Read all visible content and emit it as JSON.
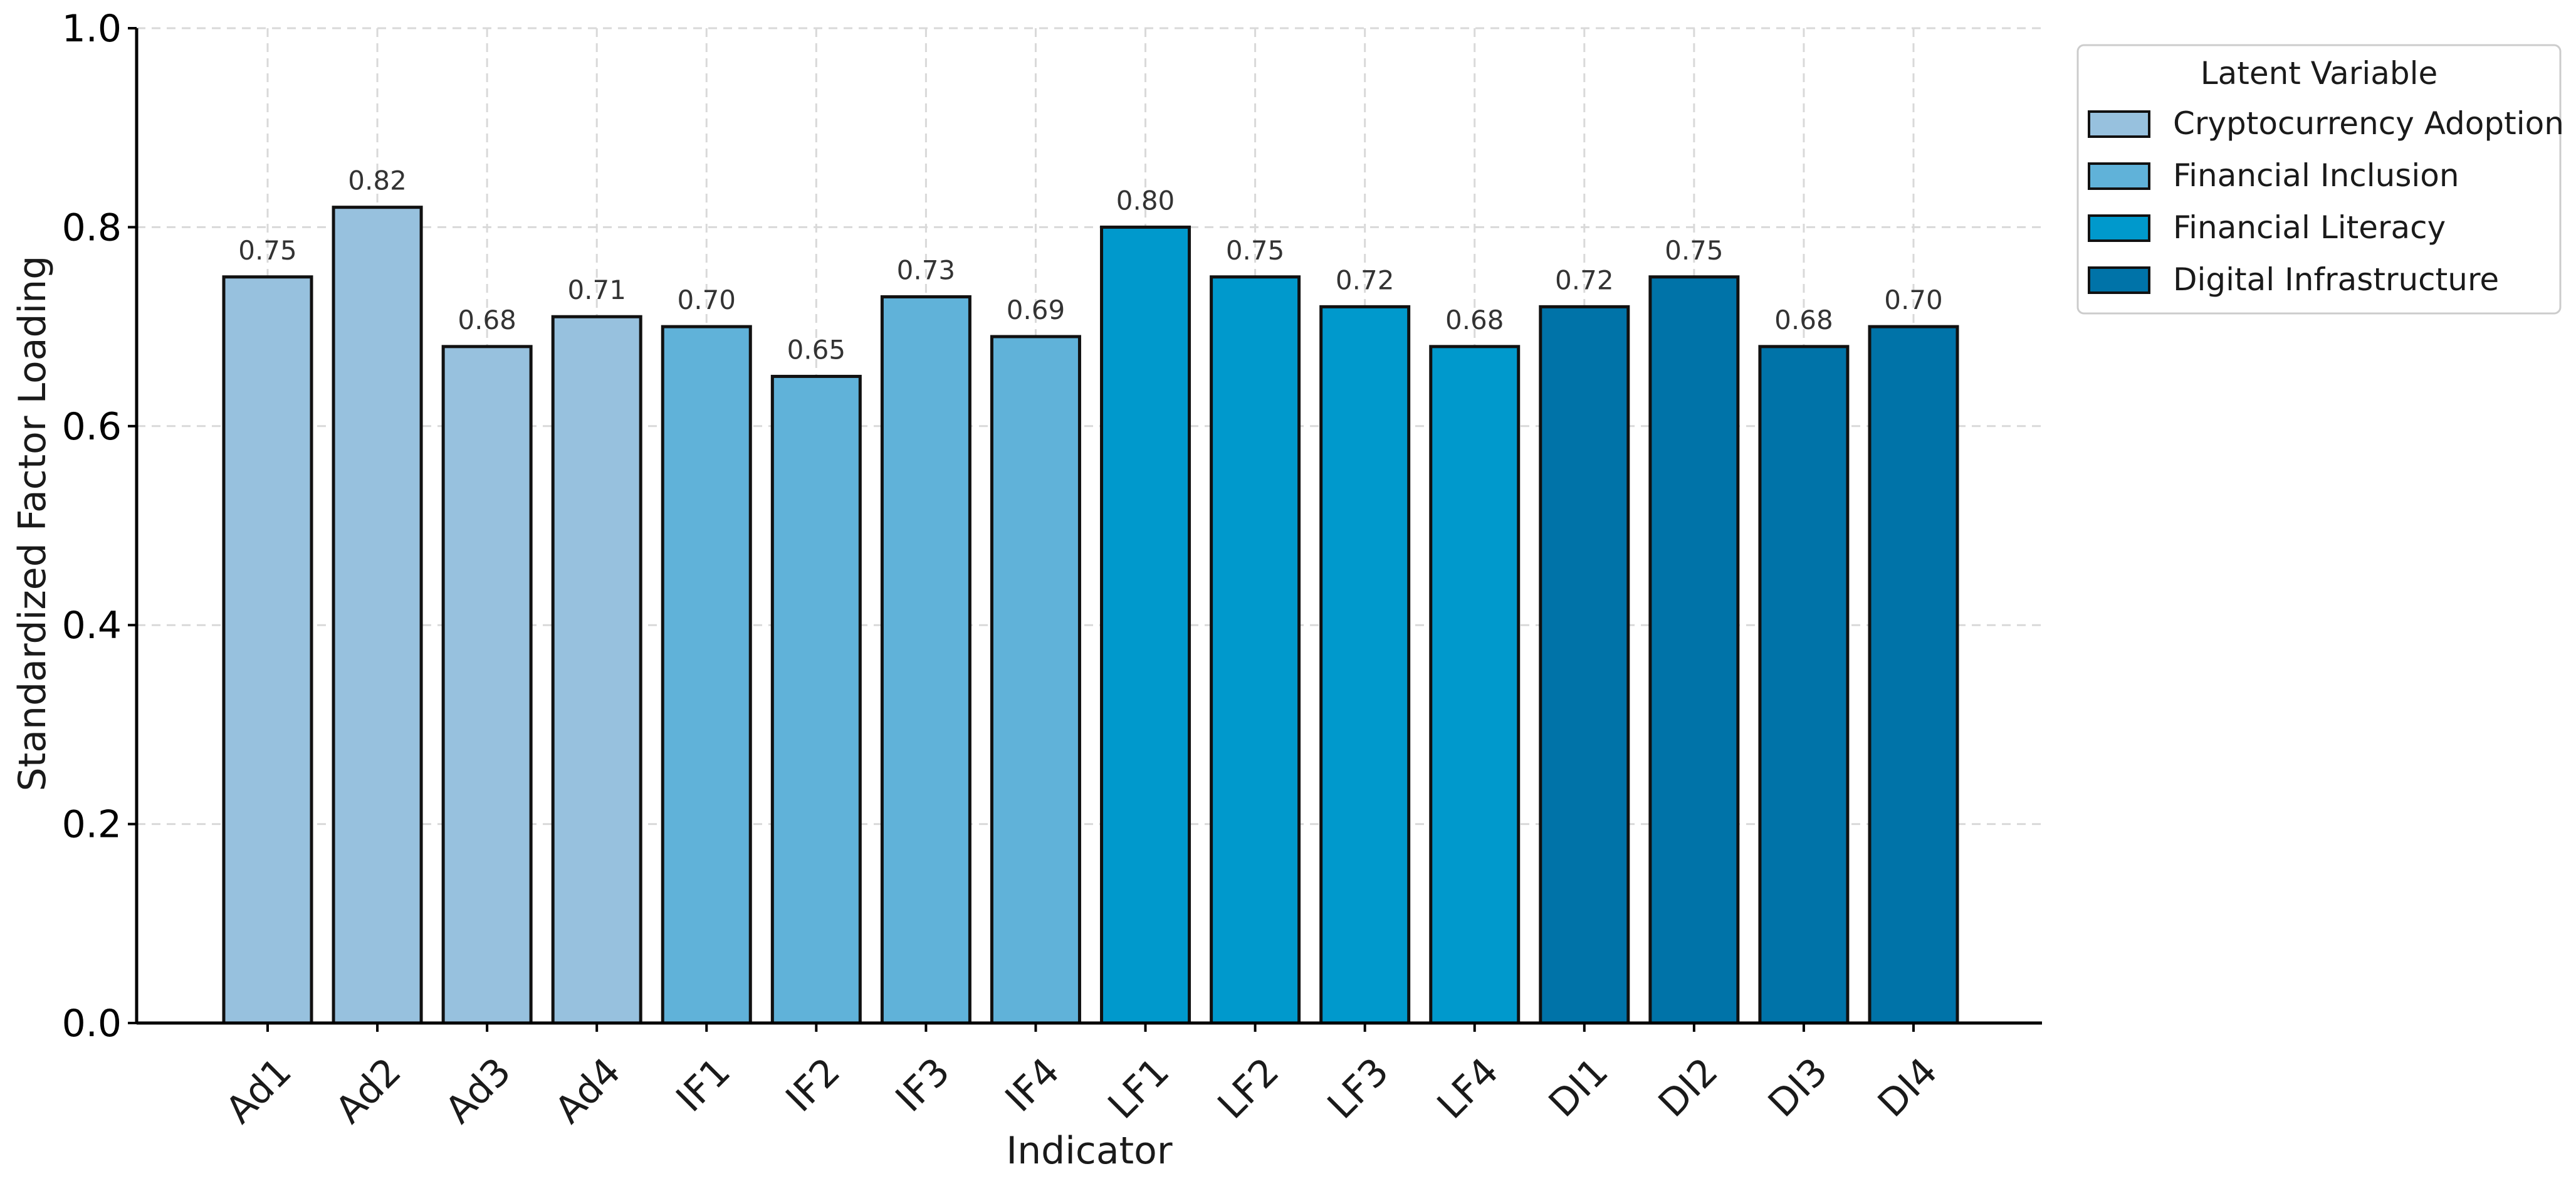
{
  "colors": {
    "Cryptocurrency Adoption": "#97c1de",
    "Financial Inclusion": "#60b2d9",
    "Financial Literacy": "#0099cc",
    "Digital Infrastructure": "#0073a8",
    "bar_edge": "#111111",
    "grid": "#d9d9d9"
  },
  "chart_data": {
    "type": "bar",
    "title": "",
    "xlabel": "Indicator",
    "ylabel": "Standardized Factor Loading",
    "ylim": [
      0,
      1.0
    ],
    "yticks": [
      "0.0",
      "0.2",
      "0.4",
      "0.6",
      "0.8",
      "1.0"
    ],
    "grid": true,
    "legend_placement": "top-right, outside plot",
    "legend_title": "Latent Variable",
    "legend": [
      "Cryptocurrency Adoption",
      "Financial Inclusion",
      "Financial Literacy",
      "Digital Infrastructure"
    ],
    "categories": [
      "Ad1",
      "Ad2",
      "Ad3",
      "Ad4",
      "IF1",
      "IF2",
      "IF3",
      "IF4",
      "LF1",
      "LF2",
      "LF3",
      "LF4",
      "DI1",
      "DI2",
      "DI3",
      "DI4"
    ],
    "groups": [
      "Cryptocurrency Adoption",
      "Cryptocurrency Adoption",
      "Cryptocurrency Adoption",
      "Cryptocurrency Adoption",
      "Financial Inclusion",
      "Financial Inclusion",
      "Financial Inclusion",
      "Financial Inclusion",
      "Financial Literacy",
      "Financial Literacy",
      "Financial Literacy",
      "Financial Literacy",
      "Digital Infrastructure",
      "Digital Infrastructure",
      "Digital Infrastructure",
      "Digital Infrastructure"
    ],
    "values": [
      0.75,
      0.82,
      0.68,
      0.71,
      0.7,
      0.65,
      0.73,
      0.69,
      0.8,
      0.75,
      0.72,
      0.68,
      0.72,
      0.75,
      0.68,
      0.7
    ],
    "value_labels": [
      "0.75",
      "0.82",
      "0.68",
      "0.71",
      "0.70",
      "0.65",
      "0.73",
      "0.69",
      "0.80",
      "0.75",
      "0.72",
      "0.68",
      "0.72",
      "0.75",
      "0.68",
      "0.70"
    ]
  }
}
